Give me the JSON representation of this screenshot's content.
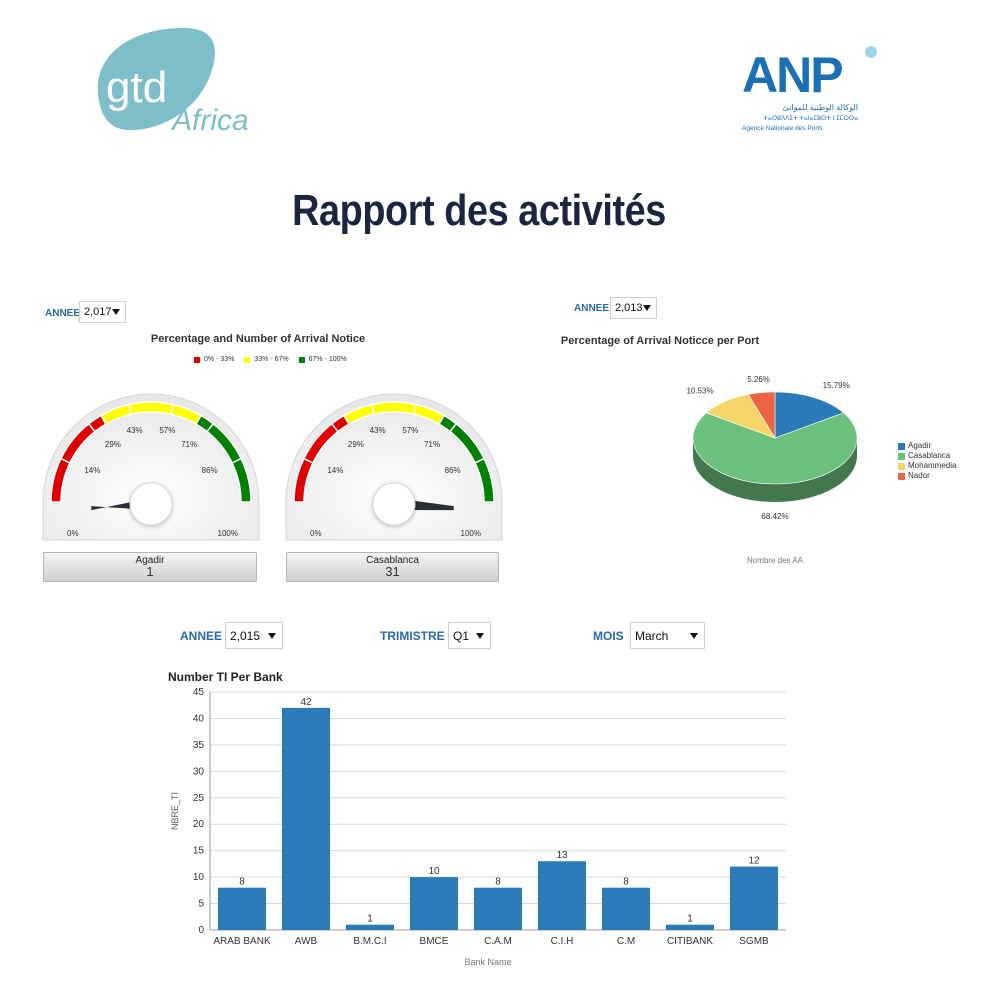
{
  "logos": {
    "gtd": {
      "line1": "gtd",
      "line2": "Africa"
    },
    "anp": {
      "mark": "ANP",
      "arabic": "الوكالة الوطنية للموانئ",
      "tifinagh": "ⵜⴰⵙⵓⴷⴷⵉⵜ ⵜⴰⵏⴰⵎⵓⵔⵜ ⵏ ⵉⵎⵔⵙⴰ",
      "caption": "Agence   Nationale   des Ports"
    },
    "colors": {
      "gtd_teal": "#7dbec8",
      "anp_blue": "#1b6fb5"
    }
  },
  "page": {
    "title": "Rapport des activités"
  },
  "gauges_panel": {
    "filter": {
      "label": "ANNEE",
      "value": "2,017"
    },
    "title": "Percentage and Number  of Arrival Notice",
    "legend": [
      {
        "label": "0% - 33%",
        "color": "#e00000"
      },
      {
        "label": "33% - 67%",
        "color": "#ffff00"
      },
      {
        "label": "67% - 100%",
        "color": "#008000"
      }
    ],
    "tick_labels": [
      "0%",
      "14%",
      "29%",
      "43%",
      "57%",
      "71%",
      "86%",
      "100%"
    ],
    "gauges": [
      {
        "name": "Agadir",
        "count": "1",
        "percent": 3.1
      },
      {
        "name": "Casablanca",
        "count": "31",
        "percent": 96.9
      }
    ]
  },
  "pie_panel": {
    "filter": {
      "label": "ANNEE",
      "value": "2,013"
    },
    "title": "Percentage of Arrival Noticce per Port",
    "xlabel": "Nombre des AA",
    "chart_data": {
      "type": "pie",
      "slices": [
        {
          "name": "Agadir",
          "value": 15.79,
          "label": "15.79%",
          "color": "#2a7ab8"
        },
        {
          "name": "Casablanca",
          "value": 68.42,
          "label": "68.42%",
          "color": "#6cc07e"
        },
        {
          "name": "Mohammedia",
          "value": 10.53,
          "label": "10.53%",
          "color": "#f5d567"
        },
        {
          "name": "Nador",
          "value": 5.26,
          "label": "5.26%",
          "color": "#ee6344"
        }
      ],
      "legend_position": "right",
      "style": "3d"
    }
  },
  "bank_panel": {
    "filters": {
      "annee": {
        "label": "ANNEE",
        "value": "2,015"
      },
      "trimestre": {
        "label": "TRIMISTRE",
        "value": "Q1"
      },
      "mois": {
        "label": "MOIS",
        "value": "March"
      }
    },
    "chart_data": {
      "type": "bar",
      "title": "Number TI Per Bank",
      "xlabel": "Bank Name",
      "ylabel": "NBRE_TI",
      "categories": [
        "ARAB BANK",
        "AWB",
        "B.M.C.I",
        "BMCE",
        "C.A.M",
        "C.I.H",
        "C.M",
        "CITIBANK",
        "SGMB"
      ],
      "values": [
        8,
        42,
        1,
        10,
        8,
        13,
        8,
        1,
        12
      ],
      "ylim": [
        0,
        45
      ],
      "yticks": [
        "0",
        "5",
        "10",
        "15",
        "20",
        "25",
        "30",
        "35",
        "40",
        "45"
      ],
      "bar_color": "#2b7bb9",
      "grid": true
    }
  }
}
